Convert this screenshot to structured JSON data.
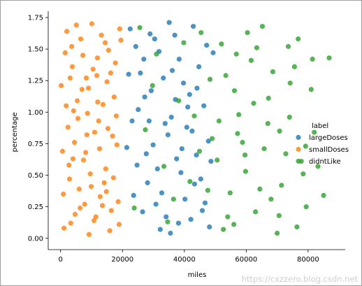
{
  "chart_data": {
    "type": "scatter",
    "xlabel": "miles",
    "ylabel": "percentage",
    "xlim": [
      -4000,
      92000
    ],
    "ylim": [
      -0.09,
      1.8
    ],
    "x_ticks": [
      {
        "value": 0,
        "label": "0"
      },
      {
        "value": 20000,
        "label": "20000"
      },
      {
        "value": 40000,
        "label": "40000"
      },
      {
        "value": 60000,
        "label": "60000"
      },
      {
        "value": 80000,
        "label": "80000"
      }
    ],
    "y_ticks": [
      {
        "value": 0.0,
        "label": "0.00"
      },
      {
        "value": 0.25,
        "label": "0.25"
      },
      {
        "value": 0.5,
        "label": "0.50"
      },
      {
        "value": 0.75,
        "label": "0.75"
      },
      {
        "value": 1.0,
        "label": "1.00"
      },
      {
        "value": 1.25,
        "label": "1.25"
      },
      {
        "value": 1.5,
        "label": "1.50"
      },
      {
        "value": 1.75,
        "label": "1.75"
      }
    ],
    "grid": false,
    "legend": {
      "title": "label",
      "placement": "right"
    },
    "series": [
      {
        "name": "largeDoses",
        "color": "#1f77b4",
        "points": [
          [
            22500,
            1.66
          ],
          [
            24300,
            1.52
          ],
          [
            25800,
            1.31
          ],
          [
            27200,
            1.12
          ],
          [
            28600,
            0.93
          ],
          [
            29900,
            0.74
          ],
          [
            31300,
            0.55
          ],
          [
            32700,
            0.36
          ],
          [
            34100,
            0.17
          ],
          [
            35500,
            0.04
          ],
          [
            36900,
            1.61
          ],
          [
            38300,
            1.42
          ],
          [
            39700,
            1.23
          ],
          [
            41100,
            1.04
          ],
          [
            42500,
            0.85
          ],
          [
            43900,
            0.66
          ],
          [
            45300,
            0.47
          ],
          [
            46700,
            0.28
          ],
          [
            48100,
            0.09
          ],
          [
            49300,
            1.47
          ],
          [
            21400,
            0.72
          ],
          [
            23100,
            0.93
          ],
          [
            26500,
            0.21
          ],
          [
            28100,
            0.44
          ],
          [
            30400,
            1.58
          ],
          [
            33200,
            1.27
          ],
          [
            35800,
            0.96
          ],
          [
            37500,
            0.63
          ],
          [
            40200,
            0.31
          ],
          [
            42900,
            1.68
          ],
          [
            44700,
            1.36
          ],
          [
            46300,
            1.05
          ],
          [
            47800,
            0.77
          ],
          [
            25100,
            1.02
          ],
          [
            27700,
            0.67
          ],
          [
            31800,
            1.48
          ],
          [
            34700,
            0.82
          ],
          [
            38900,
            0.52
          ],
          [
            41700,
            1.14
          ],
          [
            45800,
            0.22
          ],
          [
            22000,
            1.3
          ],
          [
            24700,
            0.58
          ],
          [
            29300,
            1.17
          ],
          [
            32200,
            0.07
          ],
          [
            36100,
            1.33
          ],
          [
            39200,
            0.71
          ],
          [
            43300,
            0.43
          ],
          [
            47200,
            1.53
          ],
          [
            26900,
            1.42
          ],
          [
            30800,
            0.27
          ],
          [
            35100,
            1.71
          ],
          [
            38100,
            0.12
          ],
          [
            40800,
            0.88
          ],
          [
            44100,
            1.19
          ],
          [
            48600,
            0.61
          ],
          [
            23600,
            0.34
          ],
          [
            28900,
            1.62
          ],
          [
            33800,
            0.91
          ],
          [
            37100,
            1.1
          ],
          [
            42100,
            0.15
          ]
        ]
      },
      {
        "name": "smallDoses",
        "color": "#ff7f0e",
        "points": [
          [
            200,
            1.21
          ],
          [
            1100,
            0.08
          ],
          [
            2000,
            1.64
          ],
          [
            2900,
            0.47
          ],
          [
            3800,
            1.36
          ],
          [
            4700,
            0.19
          ],
          [
            5600,
            0.95
          ],
          [
            6500,
            1.58
          ],
          [
            7400,
            0.62
          ],
          [
            8300,
            1.27
          ],
          [
            9200,
            0.03
          ],
          [
            10100,
            1.7
          ],
          [
            11000,
            0.84
          ],
          [
            11900,
            1.43
          ],
          [
            12800,
            0.33
          ],
          [
            13700,
            1.06
          ],
          [
            14600,
            0.55
          ],
          [
            15500,
            1.49
          ],
          [
            16400,
            0.22
          ],
          [
            17300,
            1.12
          ],
          [
            18200,
            0.74
          ],
          [
            19100,
            1.66
          ],
          [
            600,
            0.69
          ],
          [
            1500,
            1.47
          ],
          [
            2400,
            0.88
          ],
          [
            3300,
            0.12
          ],
          [
            4200,
            1.01
          ],
          [
            5100,
            1.69
          ],
          [
            6000,
            0.39
          ],
          [
            6900,
            1.18
          ],
          [
            7800,
            0.27
          ],
          [
            8700,
            0.99
          ],
          [
            9600,
            0.51
          ],
          [
            10500,
            1.34
          ],
          [
            11400,
            0.17
          ],
          [
            12300,
            0.93
          ],
          [
            13200,
            1.61
          ],
          [
            14100,
            0.44
          ],
          [
            15000,
            1.24
          ],
          [
            15900,
            0.06
          ],
          [
            16800,
            0.81
          ],
          [
            17700,
            1.39
          ],
          [
            18600,
            0.29
          ],
          [
            19500,
            1.57
          ],
          [
            900,
            0.35
          ],
          [
            1800,
            1.05
          ],
          [
            2700,
            0.58
          ],
          [
            3600,
            1.52
          ],
          [
            4500,
            0.76
          ],
          [
            5400,
            1.09
          ],
          [
            6300,
            0.24
          ],
          [
            7200,
            1.45
          ],
          [
            8100,
            0.68
          ],
          [
            9000,
            1.19
          ],
          [
            9900,
            0.41
          ],
          [
            10800,
            0.14
          ],
          [
            11700,
            1.29
          ],
          [
            12600,
            0.71
          ],
          [
            13500,
            0.26
          ],
          [
            14400,
            1.55
          ],
          [
            15300,
            0.87
          ],
          [
            16200,
            1.31
          ],
          [
            17100,
            0.48
          ],
          [
            18000,
            0.97
          ],
          [
            18900,
            0.11
          ],
          [
            4000,
            0.63
          ],
          [
            8500,
            0.82
          ],
          [
            12000,
            1.08
          ],
          [
            14800,
            0.37
          ],
          [
            3100,
            1.27
          ]
        ]
      },
      {
        "name": "didntLike",
        "color": "#2ca02c",
        "points": [
          [
            23800,
            0.24
          ],
          [
            27400,
            0.86
          ],
          [
            31000,
            1.46
          ],
          [
            34600,
            0.13
          ],
          [
            38200,
            1.09
          ],
          [
            41800,
            0.45
          ],
          [
            45400,
            1.63
          ],
          [
            49000,
            0.79
          ],
          [
            52600,
            0.07
          ],
          [
            56200,
            1.17
          ],
          [
            59800,
            0.53
          ],
          [
            63400,
            1.51
          ],
          [
            67000,
            0.91
          ],
          [
            70600,
            0.18
          ],
          [
            74200,
            1.23
          ],
          [
            77800,
            0.61
          ],
          [
            81400,
            1.42
          ],
          [
            85000,
            0.34
          ],
          [
            86800,
            1.43
          ],
          [
            52000,
            1.54
          ],
          [
            54800,
            0.36
          ],
          [
            57600,
            0.98
          ],
          [
            60400,
            1.63
          ],
          [
            63000,
            0.21
          ],
          [
            65800,
            0.71
          ],
          [
            68600,
            1.32
          ],
          [
            71400,
            0.42
          ],
          [
            74000,
            0.96
          ],
          [
            76800,
            1.58
          ],
          [
            79400,
            0.25
          ],
          [
            82000,
            0.84
          ],
          [
            50600,
            0.62
          ],
          [
            53400,
            1.29
          ],
          [
            56000,
            0.11
          ],
          [
            58800,
            0.76
          ],
          [
            61600,
            1.41
          ],
          [
            64400,
            0.39
          ],
          [
            67200,
            1.11
          ],
          [
            70000,
            0.04
          ],
          [
            72800,
            0.67
          ],
          [
            75600,
            1.36
          ],
          [
            78400,
            0.51
          ],
          [
            81000,
            1.18
          ],
          [
            83200,
            0.57
          ],
          [
            51200,
            0.93
          ],
          [
            54000,
            0.17
          ],
          [
            56800,
            1.46
          ],
          [
            59600,
            0.66
          ],
          [
            62400,
            1.07
          ],
          [
            65200,
            1.68
          ],
          [
            68000,
            0.31
          ],
          [
            70800,
            0.85
          ],
          [
            73600,
            1.52
          ],
          [
            76400,
            0.09
          ],
          [
            79200,
            0.73
          ],
          [
            36500,
            0.31
          ],
          [
            43200,
            0.97
          ],
          [
            47600,
            0.38
          ],
          [
            29700,
            1.21
          ],
          [
            33400,
            0.57
          ],
          [
            39800,
            1.55
          ],
          [
            44900,
            0.69
          ],
          [
            48300,
            1.26
          ],
          [
            25600,
            1.67
          ],
          [
            57200,
            0.83
          ]
        ]
      }
    ]
  },
  "watermark": "https://cxzzero.blog.csdn.net"
}
